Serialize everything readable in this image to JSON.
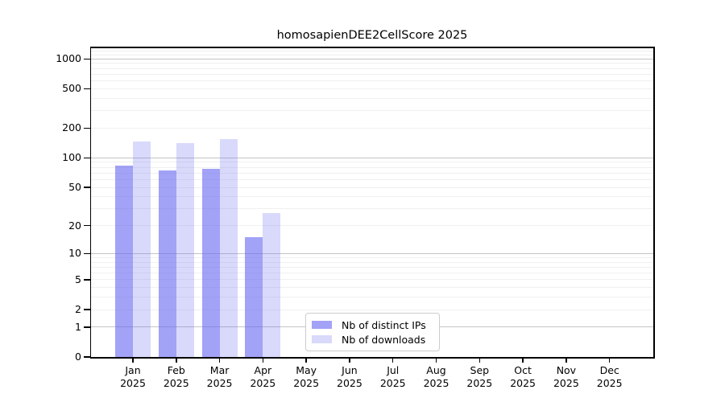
{
  "chart_data": {
    "type": "bar",
    "title": "homosapienDEE2CellScore 2025",
    "categories": [
      "Jan",
      "Feb",
      "Mar",
      "Apr",
      "May",
      "Jun",
      "Jul",
      "Aug",
      "Sep",
      "Oct",
      "Nov",
      "Dec"
    ],
    "x_tick_year": "2025",
    "series": [
      {
        "name": "Nb of distinct IPs",
        "color_css": "rgba(105,105,240,0.62)",
        "color_flat": "#a2a2f5",
        "values": [
          83,
          75,
          78,
          15,
          0,
          0,
          0,
          0,
          0,
          0,
          0,
          0
        ]
      },
      {
        "name": "Nb of downloads",
        "color_css": "rgba(105,105,240,0.25)",
        "color_flat": "#d9d9fb",
        "values": [
          148,
          140,
          156,
          27,
          0,
          0,
          0,
          0,
          0,
          0,
          0,
          0
        ]
      }
    ],
    "y_scale": "log1p",
    "y_ticks": [
      0,
      1,
      2,
      5,
      10,
      20,
      50,
      100,
      200,
      500,
      1000
    ],
    "ylim": [
      0,
      1300
    ],
    "grid": true,
    "legend_position": "lower-center"
  },
  "colors": {
    "background": "#ffffff",
    "axis": "#000000",
    "major_grid": "#c4c4c4",
    "minor_grid": "#f0f0f0",
    "legend_border": "#cccccc",
    "text": "#000000"
  }
}
